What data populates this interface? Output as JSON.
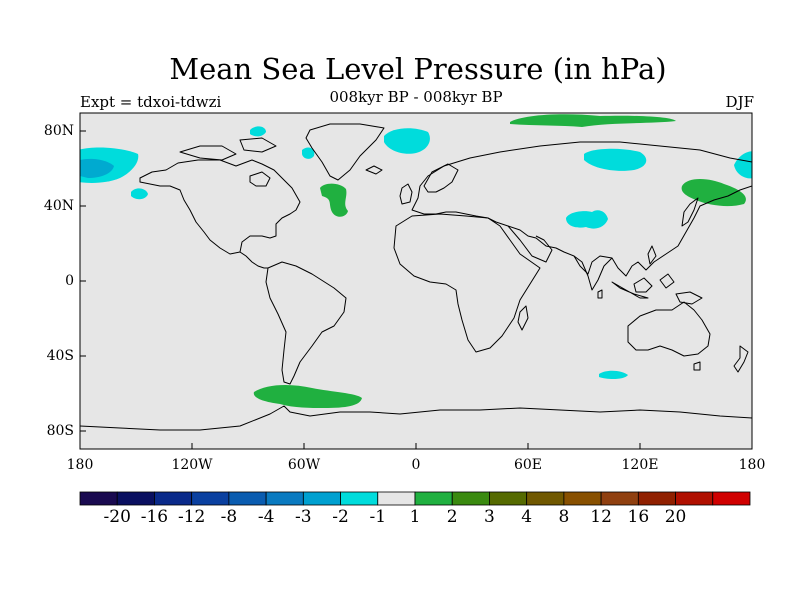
{
  "header": {
    "title": "Mean Sea Level Pressure (in hPa)",
    "subtitle": "008kyr BP - 008kyr BP",
    "expt": "Expt = tdxoi-tdwzi",
    "season": "DJF"
  },
  "map": {
    "lon_ticks": [
      "180",
      "120W",
      "60W",
      "0",
      "60E",
      "120E",
      "180"
    ],
    "lat_ticks": [
      "80N",
      "40N",
      "0",
      "40S",
      "80S"
    ],
    "background_color": "#e6e6e6",
    "anomaly_regions": [
      {
        "name": "north-pacific-negative",
        "color": "#00dcdc",
        "category": "-2"
      },
      {
        "name": "north-pacific-core",
        "color": "#00aad0",
        "category": "-3"
      },
      {
        "name": "east-pacific-negative",
        "color": "#00dcdc",
        "category": "-2"
      },
      {
        "name": "arctic-canada-negative",
        "color": "#00dcdc",
        "category": "-2"
      },
      {
        "name": "baffin-negative",
        "color": "#00dcdc",
        "category": "-2"
      },
      {
        "name": "greenland-sea-negative",
        "color": "#00dcdc",
        "category": "-2"
      },
      {
        "name": "north-atlantic-positive",
        "color": "#20b040",
        "category": "1"
      },
      {
        "name": "arctic-positive",
        "color": "#20b040",
        "category": "1"
      },
      {
        "name": "siberia-negative",
        "color": "#00dcdc",
        "category": "-2"
      },
      {
        "name": "central-asia-negative",
        "color": "#00dcdc",
        "category": "-2"
      },
      {
        "name": "far-east-positive",
        "color": "#20b040",
        "category": "1"
      },
      {
        "name": "bering-negative",
        "color": "#00dcdc",
        "category": "-2"
      },
      {
        "name": "southern-ocean-positive",
        "color": "#20b040",
        "category": "1"
      },
      {
        "name": "south-indian-negative",
        "color": "#00dcdc",
        "category": "-2"
      }
    ]
  },
  "colorbar": {
    "colors": [
      "#1a0a50",
      "#0a1060",
      "#0a2a8a",
      "#0a40a0",
      "#0a5cb0",
      "#0a7ac0",
      "#00a0d0",
      "#00dcdc",
      "#e6e6e6",
      "#20b040",
      "#3a8a10",
      "#556a00",
      "#705800",
      "#885000",
      "#904010",
      "#902000",
      "#b01000",
      "#d00000"
    ],
    "labels": [
      "-20",
      "-16",
      "-12",
      "-8",
      "-4",
      "-3",
      "-2",
      "-1",
      "1",
      "2",
      "3",
      "4",
      "8",
      "12",
      "16",
      "20"
    ]
  }
}
